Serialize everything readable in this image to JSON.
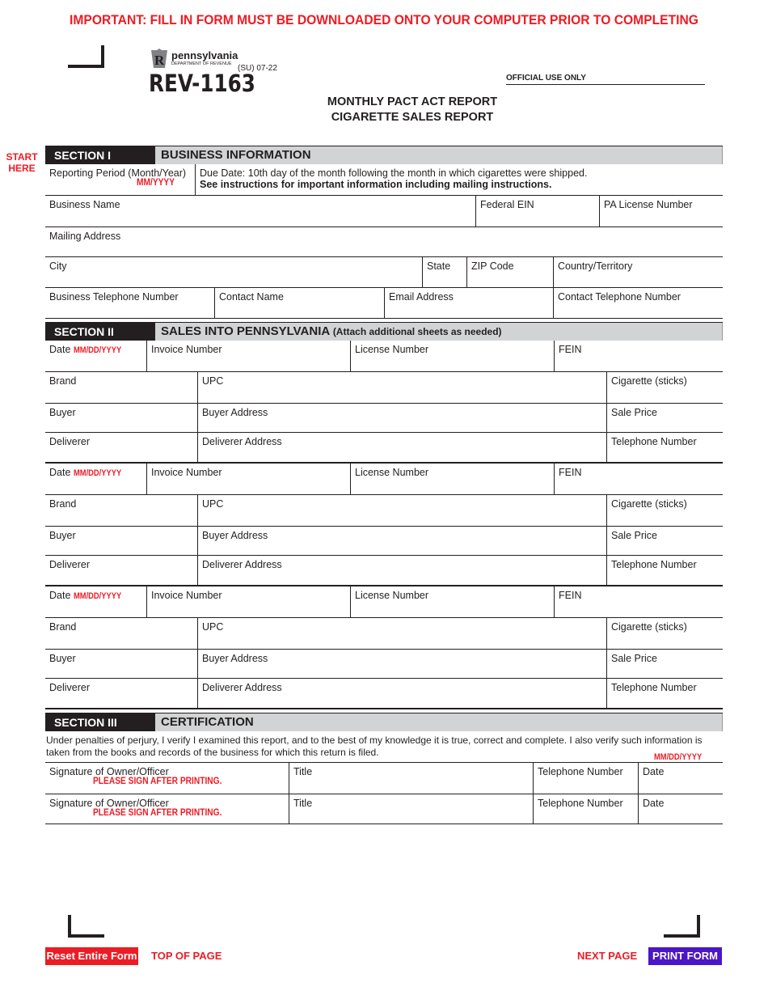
{
  "notice": "IMPORTANT: FILL IN FORM MUST BE DOWNLOADED ONTO YOUR COMPUTER PRIOR TO COMPLETING",
  "logo": {
    "name": "pennsylvania",
    "sub": "DEPARTMENT OF REVENUE"
  },
  "form_number": "REV-1163",
  "revision": "(SU) 07-22",
  "official_use": "OFFICIAL USE ONLY",
  "title_line1": "MONTHLY PACT ACT REPORT",
  "title_line2": "CIGARETTE SALES REPORT",
  "start_here": [
    "START",
    "HERE"
  ],
  "section1": {
    "tag": "SECTION I",
    "title": "BUSINESS INFORMATION",
    "reporting_period": "Reporting Period (Month/Year)",
    "reporting_hint": "MM/YYYY",
    "due_date": "Due Date: 10th day of the month following the month in which cigarettes were shipped.",
    "instructions": "See instructions for important information including mailing instructions.",
    "business_name": "Business Name",
    "federal_ein": "Federal EIN",
    "pa_license": "PA License Number",
    "mailing_address": "Mailing Address",
    "city": "City",
    "state": "State",
    "zip": "ZIP Code",
    "country": "Country/Territory",
    "business_phone": "Business Telephone Number",
    "contact_name": "Contact Name",
    "email": "Email Address",
    "contact_phone": "Contact Telephone Number"
  },
  "section2": {
    "tag": "SECTION II",
    "title": "SALES INTO PENNSYLVANIA",
    "note": "(Attach additional sheets as needed)",
    "labels": {
      "date": "Date",
      "date_hint": "MM/DD/YYYY",
      "invoice": "Invoice Number",
      "license": "License Number",
      "fein": "FEIN",
      "brand": "Brand",
      "upc": "UPC",
      "cigarettes": "Cigarette (sticks)",
      "buyer": "Buyer",
      "buyer_address": "Buyer Address",
      "sale_price": "Sale Price",
      "deliverer": "Deliverer",
      "deliverer_address": "Deliverer Address",
      "telephone": "Telephone Number"
    },
    "entry_count": 3
  },
  "section3": {
    "tag": "SECTION III",
    "title": "CERTIFICATION",
    "text": "Under penalties of perjury, I verify I examined this report, and to the best of my knowledge it is true, correct and complete. I also verify such information is taken from the books and records of the business for which this return is filed.",
    "date_hint": "MM/DD/YYYY",
    "signature": "Signature of Owner/Officer",
    "sign_hint": "PLEASE SIGN AFTER PRINTING.",
    "title_label": "Title",
    "telephone": "Telephone Number",
    "date": "Date"
  },
  "buttons": {
    "reset": "Reset Entire Form",
    "top": "TOP OF PAGE",
    "next": "NEXT PAGE",
    "print": "PRINT FORM"
  },
  "colors": {
    "red": "#ed1c24",
    "print_button": "#4b16c8",
    "section_dark": "#231f20",
    "section_gray": "#d1d3d4"
  }
}
